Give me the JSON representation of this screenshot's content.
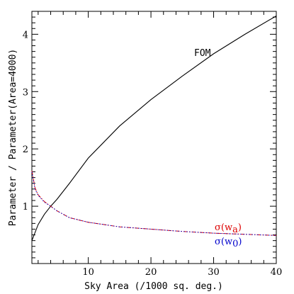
{
  "chart_data": {
    "type": "line",
    "title": "",
    "xlabel": "Sky Area (/1000 sq. deg.)",
    "ylabel": "Parameter / Parameter(Area=4000)",
    "xlim": [
      1,
      40
    ],
    "ylim": [
      0,
      4.4
    ],
    "xticks": [
      "10",
      "20",
      "30",
      "40"
    ],
    "yticks": [
      "1",
      "2",
      "3",
      "4"
    ],
    "grid": false,
    "colors": {
      "fom": "#000000",
      "sigma_wa": "#dd0000",
      "sigma_w0": "#0000cc"
    },
    "series": [
      {
        "name": "FOM",
        "style": "solid",
        "x": [
          1,
          2,
          3,
          4,
          5,
          7,
          10,
          15,
          20,
          25,
          30,
          35,
          40
        ],
        "y": [
          0.4,
          0.68,
          0.86,
          1.0,
          1.12,
          1.4,
          1.84,
          2.4,
          2.86,
          3.27,
          3.66,
          4.0,
          4.32
        ]
      },
      {
        "name": "σ(w_a)",
        "style": "dash-dot",
        "x": [
          1,
          1.5,
          2,
          3,
          4,
          5,
          7,
          10,
          15,
          20,
          25,
          30,
          35,
          40
        ],
        "y": [
          1.62,
          1.32,
          1.2,
          1.08,
          1.0,
          0.92,
          0.8,
          0.72,
          0.64,
          0.6,
          0.56,
          0.53,
          0.51,
          0.49
        ]
      },
      {
        "name": "σ(w_0)",
        "style": "dotted",
        "x": [
          1,
          1.5,
          2,
          3,
          4,
          5,
          7,
          10,
          15,
          20,
          25,
          30,
          35,
          40
        ],
        "y": [
          1.6,
          1.3,
          1.19,
          1.07,
          1.0,
          0.92,
          0.8,
          0.72,
          0.64,
          0.6,
          0.56,
          0.53,
          0.51,
          0.49
        ]
      }
    ],
    "annotations": {
      "fom": "FOM",
      "sigma_symbol": "σ",
      "sigma_wa_base": "(w",
      "sigma_wa_sub": "a",
      "sigma_w0_base": "(w",
      "sigma_w0_sub": "0",
      "close_paren": ")"
    }
  }
}
